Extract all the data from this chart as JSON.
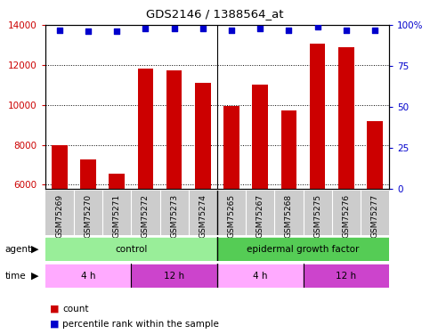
{
  "title": "GDS2146 / 1388564_at",
  "categories": [
    "GSM75269",
    "GSM75270",
    "GSM75271",
    "GSM75272",
    "GSM75273",
    "GSM75274",
    "GSM75265",
    "GSM75267",
    "GSM75268",
    "GSM75275",
    "GSM75276",
    "GSM75277"
  ],
  "bar_values": [
    8000,
    7250,
    6550,
    11800,
    11750,
    11100,
    9950,
    11000,
    9700,
    13050,
    12900,
    9200
  ],
  "percentile_values": [
    97,
    96,
    96,
    98,
    98,
    98,
    97,
    98,
    97,
    99,
    97,
    97
  ],
  "bar_color": "#cc0000",
  "dot_color": "#0000cc",
  "ylim_left": [
    5800,
    14000
  ],
  "ylim_right": [
    0,
    100
  ],
  "yticks_left": [
    6000,
    8000,
    10000,
    12000,
    14000
  ],
  "yticks_right": [
    0,
    25,
    50,
    75,
    100
  ],
  "agent_groups": [
    {
      "label": "control",
      "start": 0,
      "end": 6,
      "color": "#99ee99"
    },
    {
      "label": "epidermal growth factor",
      "start": 6,
      "end": 12,
      "color": "#55cc55"
    }
  ],
  "time_groups": [
    {
      "label": "4 h",
      "start": 0,
      "end": 3,
      "color": "#ffaaff"
    },
    {
      "label": "12 h",
      "start": 3,
      "end": 6,
      "color": "#cc44cc"
    },
    {
      "label": "4 h",
      "start": 6,
      "end": 9,
      "color": "#ffaaff"
    },
    {
      "label": "12 h",
      "start": 9,
      "end": 12,
      "color": "#cc44cc"
    }
  ],
  "legend_count_color": "#cc0000",
  "legend_dot_color": "#0000cc",
  "background_color": "#ffffff",
  "label_bg_color": "#cccccc",
  "divider_color": "#888888"
}
